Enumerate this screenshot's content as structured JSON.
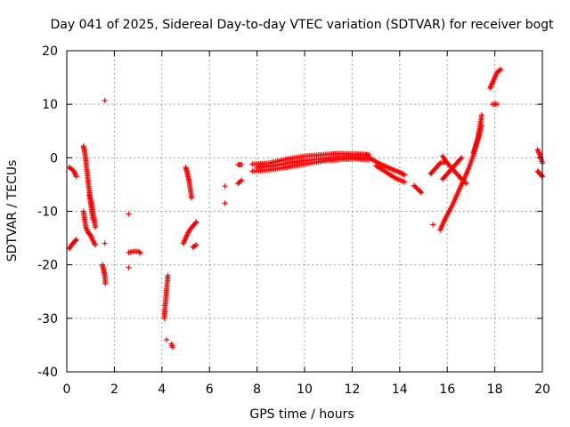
{
  "chart_data": {
    "type": "scatter",
    "title": "Day 041 of 2025, Sidereal Day-to-day VTEC variation (SDTVAR) for receiver bogt",
    "xlabel": "GPS time / hours",
    "ylabel": "SDTVAR / TECUs",
    "xlim": [
      0,
      20
    ],
    "ylim": [
      -40,
      20
    ],
    "xticks": [
      "0",
      "2",
      "4",
      "6",
      "8",
      "10",
      "12",
      "14",
      "16",
      "18",
      "20"
    ],
    "yticks": [
      "-40",
      "-30",
      "-20",
      "-10",
      "0",
      "10",
      "20"
    ],
    "grid": true,
    "marker": "+",
    "color": "#ff0000",
    "series": [
      {
        "name": "SDTVAR",
        "segments": [
          [
            [
              0.1,
              -17.0
            ],
            [
              0.2,
              -16.3
            ],
            [
              0.3,
              -15.8
            ],
            [
              0.4,
              -15.3
            ]
          ],
          [
            [
              0.1,
              -1.8
            ],
            [
              0.2,
              -2.1
            ],
            [
              0.3,
              -2.5
            ],
            [
              0.35,
              -3.0
            ],
            [
              0.4,
              -3.5
            ]
          ],
          [
            [
              0.7,
              2.2
            ],
            [
              0.75,
              1.2
            ],
            [
              0.8,
              -0.5
            ],
            [
              0.85,
              -2.5
            ],
            [
              0.9,
              -4.5
            ],
            [
              0.95,
              -6.5
            ],
            [
              1.0,
              -8.5
            ],
            [
              1.05,
              -10.0
            ],
            [
              1.1,
              -11.5
            ]
          ],
          [
            [
              0.7,
              -10.0
            ],
            [
              0.75,
              -11.5
            ],
            [
              0.8,
              -13.0
            ],
            [
              0.9,
              -14.0
            ],
            [
              1.0,
              -14.5
            ],
            [
              1.1,
              -15.5
            ],
            [
              1.2,
              -16.3
            ]
          ],
          [
            [
              0.95,
              -7.0
            ],
            [
              1.05,
              -8.5
            ],
            [
              1.1,
              -10.0
            ],
            [
              1.15,
              -11.5
            ],
            [
              1.2,
              -13.0
            ]
          ],
          [
            [
              1.5,
              -20.0
            ],
            [
              1.55,
              -21.0
            ],
            [
              1.6,
              -22.0
            ],
            [
              1.62,
              -23.5
            ]
          ],
          [
            [
              1.6,
              -16.0
            ]
          ],
          [
            [
              1.6,
              10.7
            ]
          ],
          [
            [
              2.6,
              -10.5
            ]
          ],
          [
            [
              2.6,
              -20.5
            ]
          ],
          [
            [
              2.6,
              -17.7
            ],
            [
              2.8,
              -17.5
            ],
            [
              3.0,
              -17.5
            ],
            [
              3.1,
              -17.8
            ]
          ],
          [
            [
              4.1,
              -30.0
            ],
            [
              4.15,
              -27.0
            ],
            [
              4.2,
              -24.5
            ],
            [
              4.25,
              -22.0
            ]
          ],
          [
            [
              4.2,
              -34.0
            ]
          ],
          [
            [
              4.4,
              -34.8
            ],
            [
              4.45,
              -35.4
            ]
          ],
          [
            [
              4.9,
              -16.0
            ],
            [
              5.0,
              -15.0
            ],
            [
              5.1,
              -14.0
            ],
            [
              5.2,
              -13.3
            ],
            [
              5.35,
              -12.5
            ],
            [
              5.45,
              -12.0
            ]
          ],
          [
            [
              5.3,
              -16.7
            ],
            [
              5.45,
              -16.3
            ]
          ],
          [
            [
              5.0,
              -1.8
            ],
            [
              5.05,
              -2.5
            ],
            [
              5.1,
              -3.5
            ],
            [
              5.15,
              -4.5
            ],
            [
              5.2,
              -6.0
            ],
            [
              5.25,
              -7.5
            ]
          ],
          [
            [
              6.65,
              -5.3
            ]
          ],
          [
            [
              6.65,
              -8.5
            ]
          ],
          [
            [
              7.2,
              -4.8
            ],
            [
              7.35,
              -4.2
            ]
          ],
          [
            [
              7.2,
              -1.3
            ],
            [
              7.35,
              -1.3
            ]
          ],
          [
            [
              7.8,
              -2.5
            ],
            [
              8.5,
              -2.3
            ],
            [
              9.2,
              -1.8
            ],
            [
              10.0,
              -1.2
            ],
            [
              10.8,
              -0.6
            ],
            [
              11.5,
              -0.3
            ],
            [
              12.2,
              -0.2
            ],
            [
              12.7,
              -0.4
            ]
          ],
          [
            [
              7.8,
              -1.2
            ],
            [
              8.5,
              -1.0
            ],
            [
              9.2,
              -0.3
            ],
            [
              10.0,
              0.3
            ],
            [
              10.8,
              0.6
            ],
            [
              11.5,
              0.8
            ],
            [
              12.2,
              0.7
            ],
            [
              12.7,
              0.6
            ]
          ],
          [
            [
              8.0,
              -1.8
            ],
            [
              8.7,
              -1.5
            ],
            [
              9.5,
              -0.8
            ],
            [
              10.3,
              -0.4
            ],
            [
              11.0,
              -0.1
            ],
            [
              11.8,
              0.2
            ],
            [
              12.5,
              0.0
            ]
          ],
          [
            [
              12.6,
              0.5
            ],
            [
              12.8,
              -0.2
            ],
            [
              13.1,
              -1.0
            ],
            [
              13.4,
              -1.6
            ],
            [
              13.7,
              -2.2
            ],
            [
              14.0,
              -2.7
            ],
            [
              14.2,
              -3.2
            ]
          ],
          [
            [
              13.0,
              -1.5
            ],
            [
              13.3,
              -2.3
            ],
            [
              13.6,
              -3.2
            ],
            [
              13.9,
              -4.0
            ],
            [
              14.2,
              -4.5
            ]
          ],
          [
            [
              14.6,
              -5.2
            ],
            [
              14.8,
              -6.0
            ],
            [
              14.9,
              -6.5
            ]
          ],
          [
            [
              15.3,
              -3.0
            ],
            [
              15.5,
              -2.0
            ],
            [
              15.7,
              -1.0
            ],
            [
              15.9,
              -0.8
            ]
          ],
          [
            [
              15.7,
              -13.5
            ],
            [
              15.9,
              -11.5
            ],
            [
              16.2,
              -9.0
            ],
            [
              16.5,
              -6.0
            ],
            [
              16.7,
              -4.0
            ],
            [
              16.9,
              -2.0
            ],
            [
              17.1,
              0.5
            ],
            [
              17.3,
              4.0
            ],
            [
              17.45,
              8.0
            ]
          ],
          [
            [
              15.8,
              0.3
            ],
            [
              16.0,
              -1.0
            ],
            [
              16.2,
              -2.0
            ],
            [
              16.4,
              -3.0
            ],
            [
              16.6,
              -4.0
            ],
            [
              16.8,
              -4.8
            ]
          ],
          [
            [
              15.8,
              -4.0
            ],
            [
              16.0,
              -3.0
            ],
            [
              16.2,
              -2.0
            ],
            [
              16.4,
              -1.0
            ],
            [
              16.6,
              0.0
            ]
          ],
          [
            [
              15.4,
              -12.5
            ]
          ],
          [
            [
              17.1,
              1.0
            ],
            [
              17.3,
              3.5
            ],
            [
              17.45,
              6.0
            ]
          ],
          [
            [
              17.9,
              10.0
            ],
            [
              18.1,
              10.0
            ]
          ],
          [
            [
              17.8,
              13.0
            ],
            [
              17.9,
              14.0
            ],
            [
              18.0,
              15.0
            ],
            [
              18.1,
              16.0
            ],
            [
              18.25,
              16.5
            ]
          ],
          [
            [
              19.8,
              1.5
            ],
            [
              19.9,
              0.5
            ],
            [
              20.0,
              -1.0
            ]
          ],
          [
            [
              19.8,
              -2.5
            ],
            [
              19.9,
              -3.0
            ],
            [
              20.0,
              -3.5
            ]
          ]
        ]
      }
    ]
  }
}
